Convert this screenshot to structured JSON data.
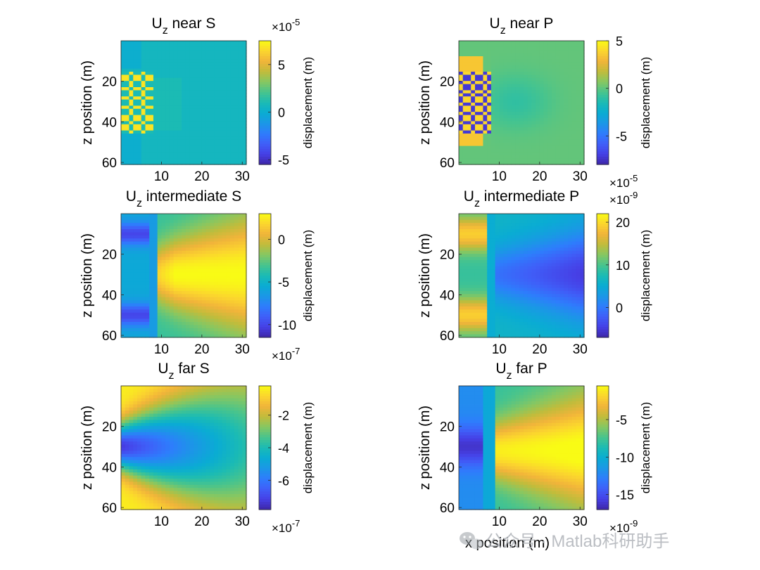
{
  "chart_data": [
    {
      "type": "heatmap",
      "title_main": "U",
      "title_sub": "z",
      "title_rest": " near S",
      "ylabel": "z position (m)",
      "xlabel": "",
      "xticks": [
        "10",
        "20",
        "30"
      ],
      "yticks": [
        "20",
        "40",
        "60"
      ],
      "xlim": [
        0,
        31
      ],
      "ylim": [
        0,
        61
      ],
      "colorbar": {
        "label": "displacement (m)",
        "ticks": [
          "5",
          "0",
          "-5"
        ],
        "tick_values": [
          5,
          0,
          -5
        ],
        "range": [
          -5.5,
          7.5
        ],
        "exponent_label": "×10",
        "exponent": "-5",
        "exponent_position": "top"
      },
      "pattern": "nearS"
    },
    {
      "type": "heatmap",
      "title_main": "U",
      "title_sub": "z",
      "title_rest": " near P",
      "ylabel": "z position (m)",
      "xlabel": "",
      "xticks": [
        "10",
        "20",
        "30"
      ],
      "yticks": [
        "20",
        "40",
        "60"
      ],
      "xlim": [
        0,
        31
      ],
      "ylim": [
        0,
        61
      ],
      "colorbar": {
        "label": "displacement (m)",
        "ticks": [
          "5",
          "0",
          "-5"
        ],
        "tick_values": [
          5,
          0,
          -5
        ],
        "range": [
          -8,
          5
        ],
        "exponent_label": "×10",
        "exponent": "-5",
        "exponent_position": "bottom"
      },
      "pattern": "nearP"
    },
    {
      "type": "heatmap",
      "title_main": "U",
      "title_sub": "z",
      "title_rest": " intermediate S",
      "ylabel": "z position (m)",
      "xlabel": "",
      "xticks": [
        "10",
        "20",
        "30"
      ],
      "yticks": [
        "20",
        "40",
        "60"
      ],
      "xlim": [
        0,
        31
      ],
      "ylim": [
        0,
        61
      ],
      "colorbar": {
        "label": "displacement (m)",
        "ticks": [
          "0",
          "-5",
          "-10"
        ],
        "tick_values": [
          0,
          -5,
          -10
        ],
        "range": [
          -11.5,
          3
        ],
        "exponent_label": "×10",
        "exponent": "-7",
        "exponent_position": "bottom"
      },
      "pattern": "intS"
    },
    {
      "type": "heatmap",
      "title_main": "U",
      "title_sub": "z",
      "title_rest": " intermediate P",
      "ylabel": "z position (m)",
      "xlabel": "",
      "xticks": [
        "10",
        "20",
        "30"
      ],
      "yticks": [
        "20",
        "40",
        "60"
      ],
      "xlim": [
        0,
        31
      ],
      "ylim": [
        0,
        61
      ],
      "colorbar": {
        "label": "displacement (m)",
        "ticks": [
          "20",
          "10",
          "0"
        ],
        "tick_values": [
          20,
          10,
          0
        ],
        "range": [
          -7,
          22
        ],
        "exponent_label": "×10",
        "exponent": "-9",
        "exponent_position": "top"
      },
      "pattern": "intP"
    },
    {
      "type": "heatmap",
      "title_main": "U",
      "title_sub": "z",
      "title_rest": " far S",
      "ylabel": "z position (m)",
      "xlabel": "",
      "xticks": [
        "10",
        "20",
        "30"
      ],
      "yticks": [
        "20",
        "40",
        "60"
      ],
      "xlim": [
        0,
        31
      ],
      "ylim": [
        0,
        61
      ],
      "colorbar": {
        "label": "displacement (m)",
        "ticks": [
          "-2",
          "-4",
          "-6"
        ],
        "tick_values": [
          -2,
          -4,
          -6
        ],
        "range": [
          -7.8,
          -0.2
        ],
        "exponent_label": "×10",
        "exponent": "-7",
        "exponent_position": "bottom"
      },
      "pattern": "farS"
    },
    {
      "type": "heatmap",
      "title_main": "U",
      "title_sub": "z",
      "title_rest": " far P",
      "ylabel": "z position (m)",
      "xlabel": "x position (m)",
      "xticks": [
        "10",
        "20",
        "30"
      ],
      "yticks": [
        "20",
        "40",
        "60"
      ],
      "xlim": [
        0,
        31
      ],
      "ylim": [
        0,
        61
      ],
      "colorbar": {
        "label": "displacement (m)",
        "ticks": [
          "-5",
          "-10",
          "-15"
        ],
        "tick_values": [
          -5,
          -10,
          -15
        ],
        "range": [
          -17,
          -0.5
        ],
        "exponent_label": "×10",
        "exponent": "-9",
        "exponent_position": "bottom"
      },
      "pattern": "farP"
    }
  ],
  "watermark": {
    "text": "公众号 · Matlab科研助手",
    "icon": "wechat-icon"
  },
  "colormap": [
    "#3e26a8",
    "#4640e6",
    "#3f5ff8",
    "#2e7dfc",
    "#1b97e6",
    "#0aacd3",
    "#1bbbb4",
    "#48c48d",
    "#86c762",
    "#c1bc3b",
    "#f1b43a",
    "#fbd52e",
    "#f9fb15"
  ]
}
